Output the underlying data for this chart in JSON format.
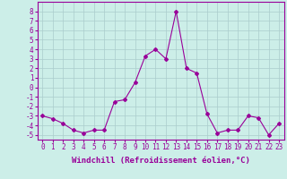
{
  "xlabel": "Windchill (Refroidissement éolien,°C)",
  "x": [
    0,
    1,
    2,
    3,
    4,
    5,
    6,
    7,
    8,
    9,
    10,
    11,
    12,
    13,
    14,
    15,
    16,
    17,
    18,
    19,
    20,
    21,
    22,
    23
  ],
  "y": [
    -3.0,
    -3.3,
    -3.8,
    -4.5,
    -4.8,
    -4.5,
    -4.5,
    -1.5,
    -1.3,
    0.5,
    3.3,
    4.0,
    3.0,
    8.0,
    2.0,
    1.5,
    -2.8,
    -4.8,
    -4.5,
    -4.5,
    -3.0,
    -3.2,
    -5.0,
    -3.8
  ],
  "ylim": [
    -5.5,
    9.0
  ],
  "xlim": [
    -0.5,
    23.5
  ],
  "line_color": "#990099",
  "marker": "D",
  "marker_size": 2,
  "bg_color": "#cceee8",
  "grid_color": "#aacccc",
  "tick_fontsize": 5.5,
  "label_fontsize": 6.5
}
